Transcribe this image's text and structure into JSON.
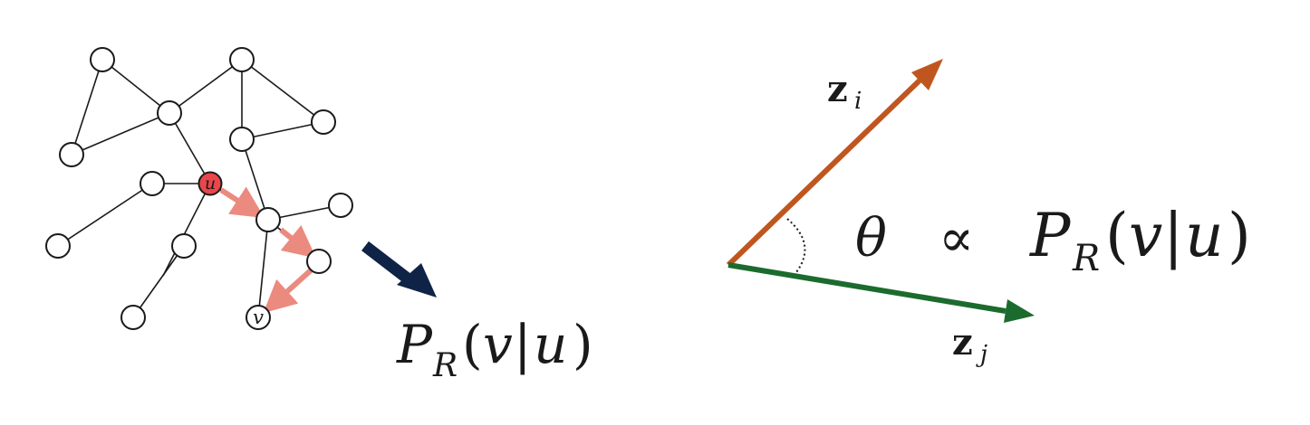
{
  "graph": {
    "start_label": "u",
    "end_label": "v",
    "start_color": "#e8474b",
    "walk_color": "#eb8a7f"
  },
  "mapping_arrow_color": "#0f2347",
  "probability": {
    "P": "P",
    "R": "R",
    "open": "(",
    "v": "v",
    "bar": "|",
    "u": "u",
    "close": ")"
  },
  "embedding": {
    "zi": {
      "z": "z",
      "sub": "i",
      "color": "#c0561f"
    },
    "zj": {
      "z": "z",
      "sub": "j",
      "color": "#1c6b2e"
    },
    "theta": "θ",
    "propto": "∝"
  }
}
